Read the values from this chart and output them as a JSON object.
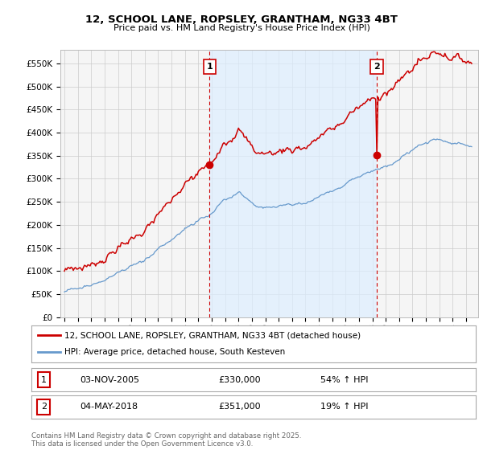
{
  "title": "12, SCHOOL LANE, ROPSLEY, GRANTHAM, NG33 4BT",
  "subtitle": "Price paid vs. HM Land Registry's House Price Index (HPI)",
  "legend_line1": "12, SCHOOL LANE, ROPSLEY, GRANTHAM, NG33 4BT (detached house)",
  "legend_line2": "HPI: Average price, detached house, South Kesteven",
  "sale1_label": "1",
  "sale1_date": "03-NOV-2005",
  "sale1_price": "£330,000",
  "sale1_hpi": "54% ↑ HPI",
  "sale2_label": "2",
  "sale2_date": "04-MAY-2018",
  "sale2_price": "£351,000",
  "sale2_hpi": "19% ↑ HPI",
  "footer": "Contains HM Land Registry data © Crown copyright and database right 2025.\nThis data is licensed under the Open Government Licence v3.0.",
  "red_color": "#cc0000",
  "blue_color": "#6699cc",
  "vline_color": "#cc0000",
  "grid_color": "#cccccc",
  "bg_color": "#ffffff",
  "plot_bg": "#f5f5f5",
  "shade_color": "#ddeeff",
  "ylim": [
    0,
    580000
  ],
  "yticks": [
    0,
    50000,
    100000,
    150000,
    200000,
    250000,
    300000,
    350000,
    400000,
    450000,
    500000,
    550000
  ],
  "sale1_x": 2005.84,
  "sale1_y": 330000,
  "sale2_x": 2018.34,
  "sale2_y": 351000,
  "xlim_left": 1994.7,
  "xlim_right": 2025.9
}
